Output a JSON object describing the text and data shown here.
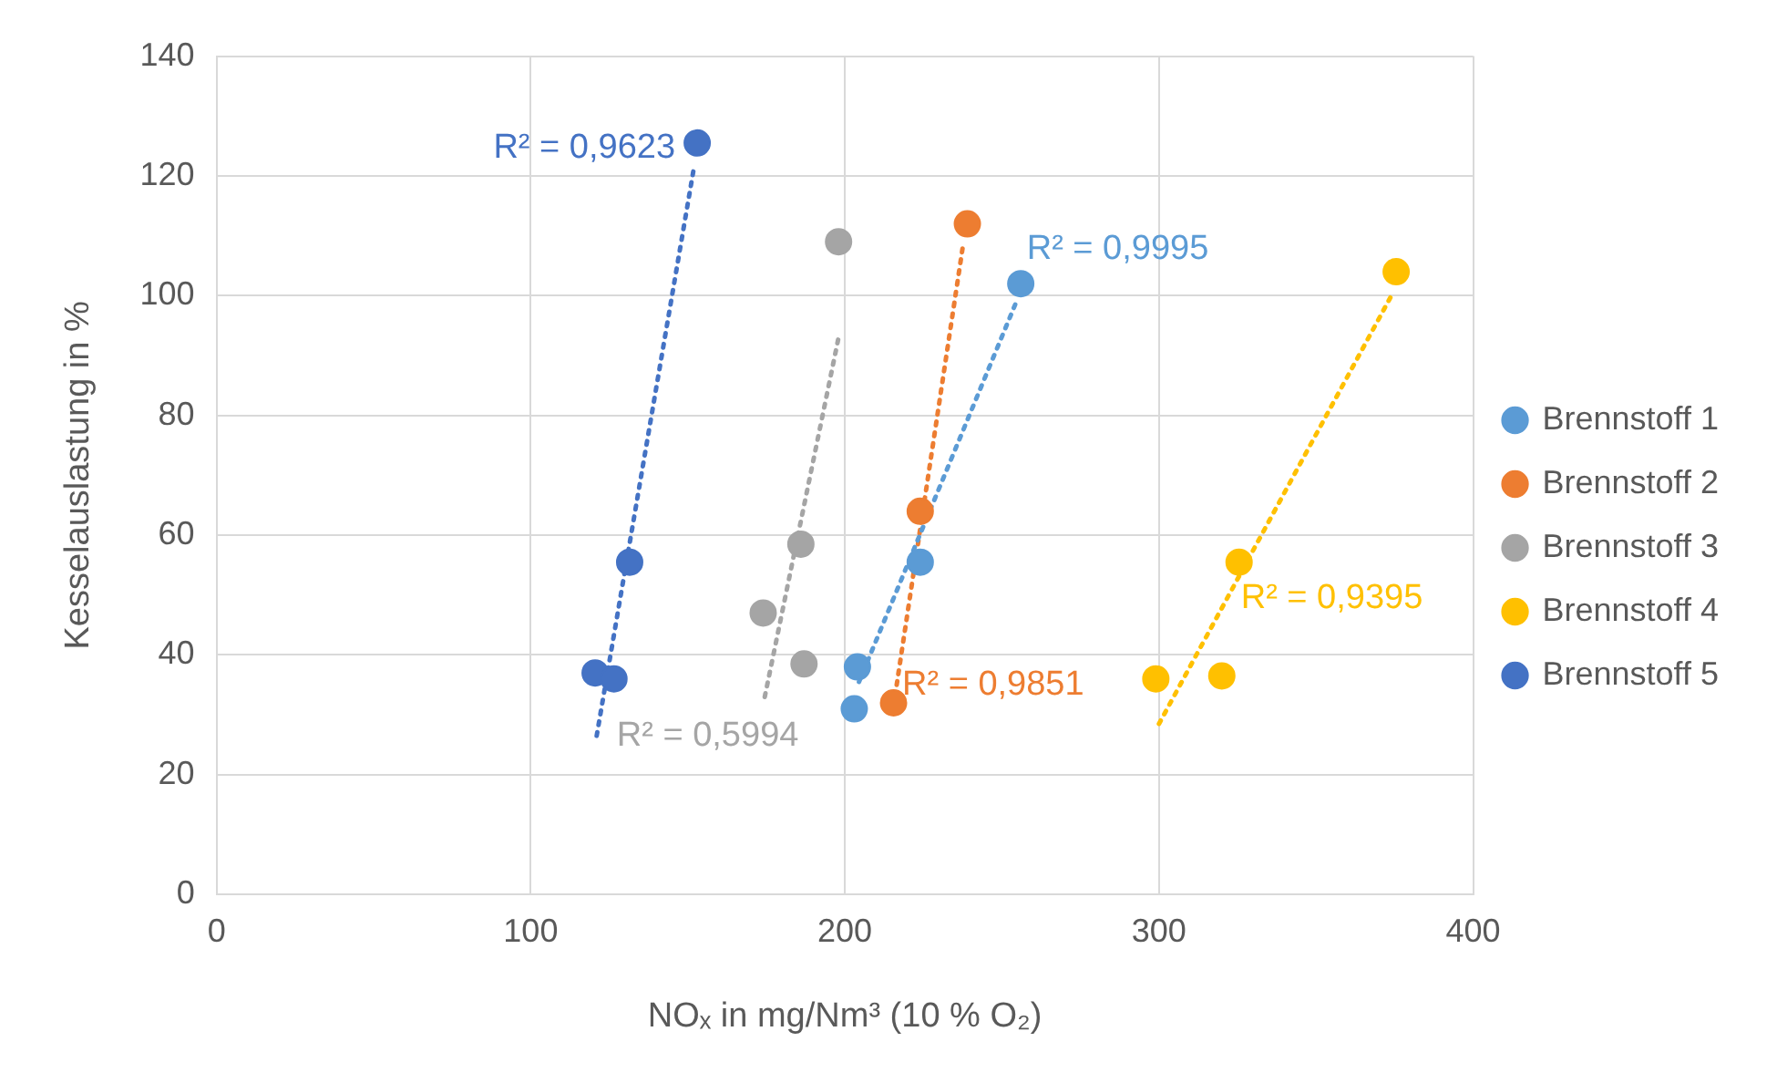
{
  "chart_data": {
    "type": "scatter",
    "xlabel": "NOₓ in mg/Nm³ (10 % O₂)",
    "ylabel": "Kesselauslastung in %",
    "xlim": [
      0,
      400
    ],
    "xticks": [
      0,
      100,
      200,
      300,
      400
    ],
    "ylim": [
      0,
      140
    ],
    "yticks": [
      0,
      20,
      40,
      60,
      80,
      100,
      120,
      140
    ],
    "grid": true,
    "legend": "right",
    "marker": "circle",
    "series": [
      {
        "name": "Brennstoff 1",
        "color": "#5b9bd5",
        "x": [
          203,
          204,
          224,
          256
        ],
        "values": [
          31,
          38,
          55.5,
          102
        ]
      },
      {
        "name": "Brennstoff 2",
        "color": "#ed7d31",
        "x": [
          215.5,
          224,
          239
        ],
        "values": [
          32,
          64,
          112
        ]
      },
      {
        "name": "Brennstoff 3",
        "color": "#a5a5a5",
        "x": [
          174,
          186,
          187,
          198
        ],
        "values": [
          47,
          58.5,
          38.5,
          109
        ]
      },
      {
        "name": "Brennstoff 4",
        "color": "#ffc000",
        "x": [
          299,
          320,
          325.5,
          375.5
        ],
        "values": [
          36,
          36.5,
          55.5,
          104
        ]
      },
      {
        "name": "Brennstoff 5",
        "color": "#4472c4",
        "x": [
          120.5,
          126.5,
          131.5,
          153
        ],
        "values": [
          37,
          36,
          55.5,
          125.5
        ]
      },
      {
        "type": "line",
        "color": "#5b9bd5",
        "line_style": "dotted",
        "marker": "none",
        "x": [
          204.5,
          255
        ],
        "values": [
          35.5,
          99.5
        ]
      },
      {
        "type": "line",
        "color": "#ed7d31",
        "line_style": "dotted",
        "marker": "none",
        "x": [
          216.5,
          237.5
        ],
        "values": [
          35,
          108
        ]
      },
      {
        "type": "line",
        "color": "#a5a5a5",
        "line_style": "dotted",
        "marker": "none",
        "x": [
          174.5,
          198
        ],
        "values": [
          33,
          93
        ]
      },
      {
        "type": "line",
        "color": "#ffc000",
        "line_style": "dotted",
        "marker": "none",
        "x": [
          300,
          374.5
        ],
        "values": [
          28.5,
          100.5
        ]
      },
      {
        "type": "line",
        "color": "#4472c4",
        "line_style": "dotted",
        "marker": "none",
        "x": [
          121,
          152
        ],
        "values": [
          26.5,
          121.5
        ]
      }
    ],
    "annotations": [
      {
        "text": "R² = 0,9995",
        "x": 255,
        "y": 99.5
      },
      {
        "text": "R² = 0,9851",
        "x": 216.5,
        "y": 35
      },
      {
        "text": "R² = 0,5994",
        "x": 121,
        "y": 26.5
      },
      {
        "text": "R² = 0,9395",
        "x": 325.5,
        "y": 55.5
      },
      {
        "text": "R² = 0,9623",
        "x": 153,
        "y": 125.5
      }
    ]
  }
}
